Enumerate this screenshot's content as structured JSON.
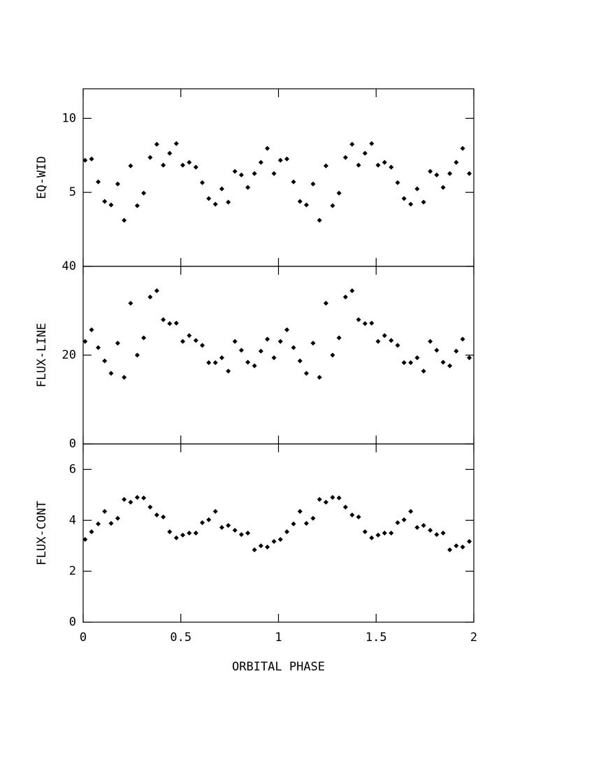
{
  "chart_data": [
    {
      "type": "scatter",
      "ylabel": "EQ-WID",
      "color": "#000000",
      "ylim": [
        0,
        12
      ],
      "yticks": [
        5,
        10
      ],
      "x": [
        0.01,
        0.043,
        0.077,
        0.11,
        0.143,
        0.177,
        0.21,
        0.243,
        0.277,
        0.31,
        0.343,
        0.377,
        0.41,
        0.443,
        0.477,
        0.51,
        0.543,
        0.577,
        0.61,
        0.643,
        0.677,
        0.71,
        0.743,
        0.777,
        0.81,
        0.843,
        0.877,
        0.91,
        0.943,
        0.977,
        1.01,
        1.043,
        1.077,
        1.11,
        1.143,
        1.177,
        1.21,
        1.243,
        1.277,
        1.31,
        1.343,
        1.377,
        1.41,
        1.443,
        1.477,
        1.51,
        1.543,
        1.577,
        1.61,
        1.643,
        1.677,
        1.71,
        1.743,
        1.777,
        1.81,
        1.843,
        1.877,
        1.91,
        1.943,
        1.977
      ],
      "values": [
        7.17,
        7.26,
        5.71,
        4.39,
        4.15,
        5.57,
        3.11,
        6.79,
        4.1,
        4.95,
        7.36,
        8.25,
        6.84,
        7.64,
        8.3,
        6.84,
        7.03,
        6.7,
        5.66,
        4.58,
        4.2,
        5.24,
        4.34,
        6.42,
        6.18,
        5.33,
        6.27,
        7.03,
        7.97,
        6.27,
        7.17,
        7.26,
        5.71,
        4.39,
        4.15,
        5.57,
        3.11,
        6.79,
        4.1,
        4.95,
        7.36,
        8.25,
        6.84,
        7.64,
        8.3,
        6.84,
        7.03,
        6.7,
        5.66,
        4.58,
        4.2,
        5.24,
        4.34,
        6.42,
        6.18,
        5.33,
        6.27,
        7.03,
        7.97,
        6.27
      ]
    },
    {
      "type": "scatter",
      "ylabel": "FLUX-LINE",
      "color": "#000000",
      "ylim": [
        0,
        40
      ],
      "yticks": [
        0,
        20,
        40
      ],
      "x": [
        0.01,
        0.043,
        0.077,
        0.11,
        0.143,
        0.177,
        0.21,
        0.243,
        0.277,
        0.31,
        0.343,
        0.377,
        0.41,
        0.443,
        0.477,
        0.51,
        0.543,
        0.577,
        0.61,
        0.643,
        0.677,
        0.71,
        0.743,
        0.777,
        0.81,
        0.843,
        0.877,
        0.91,
        0.943,
        0.977,
        1.01,
        1.043,
        1.077,
        1.11,
        1.143,
        1.177,
        1.21,
        1.243,
        1.277,
        1.31,
        1.343,
        1.377,
        1.41,
        1.443,
        1.477,
        1.51,
        1.543,
        1.577,
        1.61,
        1.643,
        1.677,
        1.71,
        1.743,
        1.777,
        1.81,
        1.843,
        1.877,
        1.91,
        1.943,
        1.977
      ],
      "values": [
        23.1,
        25.7,
        21.7,
        18.7,
        15.9,
        22.7,
        15.0,
        31.7,
        20.0,
        23.9,
        33.1,
        34.5,
        28.0,
        27.1,
        27.2,
        23.1,
        24.4,
        23.3,
        22.2,
        18.3,
        18.3,
        19.4,
        16.4,
        23.1,
        21.1,
        18.4,
        17.6,
        20.9,
        23.6,
        19.4,
        23.1,
        25.7,
        21.7,
        18.7,
        15.9,
        22.7,
        15.0,
        31.7,
        20.0,
        23.9,
        33.1,
        34.5,
        28.0,
        27.1,
        27.2,
        23.1,
        24.4,
        23.3,
        22.2,
        18.3,
        18.3,
        19.4,
        16.4,
        23.1,
        21.1,
        18.4,
        17.6,
        20.9,
        23.6,
        19.4
      ]
    },
    {
      "type": "scatter",
      "ylabel": "FLUX-CONT",
      "xlabel": "ORBITAL PHASE",
      "color": "#000000",
      "ylim": [
        0,
        7
      ],
      "yticks": [
        0,
        2,
        4,
        6
      ],
      "xlim": [
        0,
        2
      ],
      "xticks": [
        0,
        0.5,
        1,
        1.5,
        2
      ],
      "x": [
        0.01,
        0.043,
        0.077,
        0.11,
        0.143,
        0.177,
        0.21,
        0.243,
        0.277,
        0.31,
        0.343,
        0.377,
        0.41,
        0.443,
        0.477,
        0.51,
        0.543,
        0.577,
        0.61,
        0.643,
        0.677,
        0.71,
        0.743,
        0.777,
        0.81,
        0.843,
        0.877,
        0.91,
        0.943,
        0.977,
        1.01,
        1.043,
        1.077,
        1.11,
        1.143,
        1.177,
        1.21,
        1.243,
        1.277,
        1.31,
        1.343,
        1.377,
        1.41,
        1.443,
        1.477,
        1.51,
        1.543,
        1.577,
        1.61,
        1.643,
        1.677,
        1.71,
        1.743,
        1.777,
        1.81,
        1.843,
        1.877,
        1.91,
        1.943,
        1.977
      ],
      "values": [
        3.25,
        3.55,
        3.86,
        4.35,
        3.88,
        4.08,
        4.82,
        4.71,
        4.9,
        4.88,
        4.52,
        4.21,
        4.13,
        3.55,
        3.31,
        3.42,
        3.5,
        3.5,
        3.91,
        4.02,
        4.35,
        3.72,
        3.8,
        3.61,
        3.44,
        3.5,
        2.84,
        3.0,
        2.95,
        3.17,
        3.25,
        3.55,
        3.86,
        4.35,
        3.88,
        4.08,
        4.82,
        4.71,
        4.9,
        4.88,
        4.52,
        4.21,
        4.13,
        3.55,
        3.31,
        3.42,
        3.5,
        3.5,
        3.91,
        4.02,
        4.35,
        3.72,
        3.8,
        3.61,
        3.44,
        3.5,
        2.84,
        3.0,
        2.95,
        3.17
      ]
    }
  ]
}
